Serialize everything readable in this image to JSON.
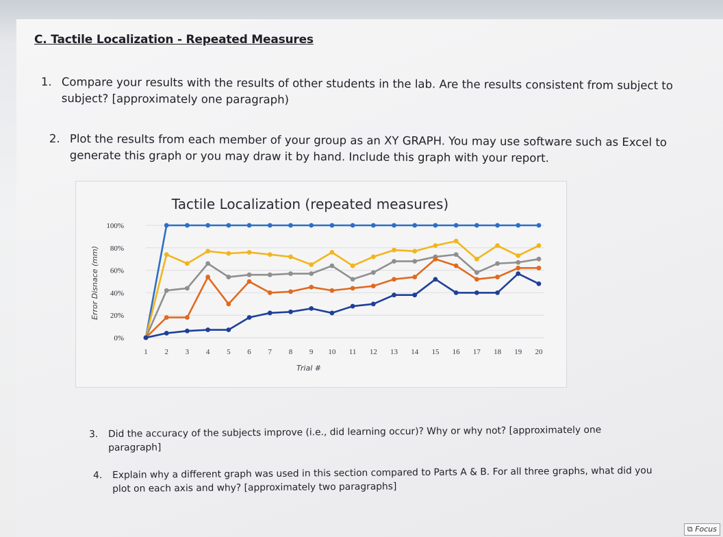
{
  "document": {
    "section_heading": "C. Tactile Localization - Repeated Measures",
    "questions": [
      {
        "number": "1.",
        "text": "Compare your results with the results of other students in the lab. Are the results consistent from subject to subject? [approximately one paragraph)"
      },
      {
        "number": "2.",
        "text": "Plot the results from each member of your group as an XY GRAPH. You may use software such as Excel to generate this graph or you may draw it by hand. Include this graph with your report."
      },
      {
        "number": "3.",
        "text": "Did the accuracy of the subjects improve (i.e., did learning occur)? Why or why not? [approximately one paragraph]"
      },
      {
        "number": "4.",
        "text": "Explain why a different graph was used in this section compared to Parts A & B. For all three graphs, what did you plot on each axis and why? [approximately two paragraphs]"
      }
    ]
  },
  "chart_data": {
    "type": "line",
    "title": "Tactile Localization (repeated measures)",
    "xlabel": "Trial #",
    "ylabel": "Error Disnace (mm)",
    "x": [
      1,
      2,
      3,
      4,
      5,
      6,
      7,
      8,
      9,
      10,
      11,
      12,
      13,
      14,
      15,
      16,
      17,
      18,
      19,
      20
    ],
    "ylim": [
      0,
      100
    ],
    "yticks": [
      "0%",
      "20%",
      "40%",
      "60%",
      "80%",
      "100%"
    ],
    "grid": true,
    "legend": "none",
    "series": [
      {
        "color": "#2e6fc4",
        "values": [
          0,
          100,
          100,
          100,
          100,
          100,
          100,
          100,
          100,
          100,
          100,
          100,
          100,
          100,
          100,
          100,
          100,
          100,
          100,
          100
        ]
      },
      {
        "color": "#f2b51c",
        "values": [
          0,
          74,
          66,
          77,
          75,
          76,
          74,
          72,
          65,
          76,
          64,
          72,
          78,
          77,
          82,
          86,
          70,
          82,
          73,
          82
        ]
      },
      {
        "color": "#8f8f8f",
        "values": [
          0,
          42,
          44,
          66,
          54,
          56,
          56,
          57,
          57,
          64,
          52,
          58,
          68,
          68,
          72,
          74,
          58,
          66,
          67,
          70
        ]
      },
      {
        "color": "#e06a1e",
        "values": [
          0,
          18,
          18,
          54,
          30,
          50,
          40,
          41,
          45,
          42,
          44,
          46,
          52,
          54,
          70,
          64,
          52,
          54,
          62,
          62
        ]
      },
      {
        "color": "#1f3f98",
        "values": [
          0,
          4,
          6,
          7,
          7,
          18,
          22,
          23,
          26,
          22,
          28,
          30,
          38,
          38,
          52,
          40,
          40,
          40,
          57,
          48
        ]
      }
    ]
  },
  "focus_badge": {
    "label": "Focus",
    "icon": "focus-icon"
  }
}
